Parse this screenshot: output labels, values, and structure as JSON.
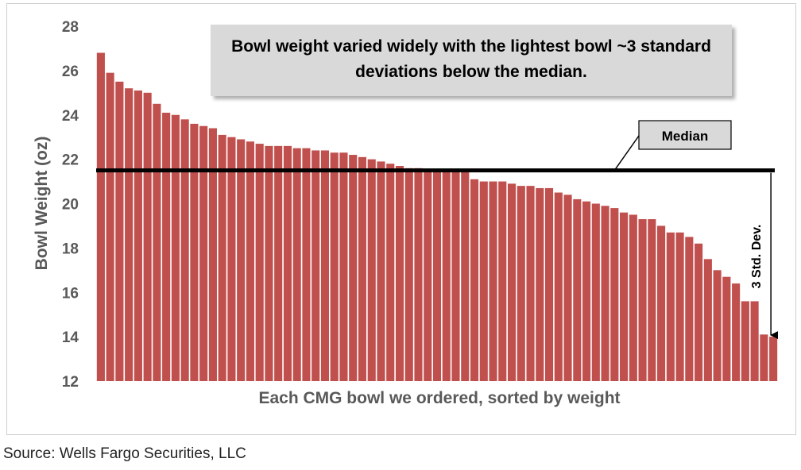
{
  "chart_data": {
    "type": "bar",
    "title": "Bowl weight varied widely with the lightest bowl ~3 standard deviations below the median.",
    "xlabel": "Each CMG bowl we ordered, sorted by weight",
    "ylabel": "Bowl Weight (oz)",
    "ylim": [
      12,
      28
    ],
    "yticks": [
      12,
      14,
      16,
      18,
      20,
      22,
      24,
      26,
      28
    ],
    "grid": false,
    "bar_color": "#c0504d",
    "values": [
      26.8,
      25.9,
      25.5,
      25.2,
      25.1,
      25.0,
      24.5,
      24.1,
      24.0,
      23.8,
      23.6,
      23.5,
      23.4,
      23.1,
      23.0,
      22.9,
      22.8,
      22.7,
      22.6,
      22.6,
      22.6,
      22.5,
      22.5,
      22.4,
      22.4,
      22.3,
      22.3,
      22.2,
      22.1,
      22.0,
      21.9,
      21.8,
      21.7,
      21.6,
      21.6,
      21.5,
      21.5,
      21.5,
      21.5,
      21.5,
      21.1,
      21.0,
      21.0,
      21.0,
      20.9,
      20.8,
      20.8,
      20.7,
      20.7,
      20.5,
      20.4,
      20.2,
      20.1,
      20.0,
      19.9,
      19.8,
      19.6,
      19.5,
      19.3,
      19.3,
      19.0,
      18.7,
      18.7,
      18.5,
      18.2,
      17.5,
      17.0,
      16.7,
      16.4,
      15.6,
      15.6,
      14.1,
      14.0
    ],
    "median": 21.5,
    "annotations": {
      "median_label": "Median",
      "std_dev_label": "3 Std. Dev."
    }
  },
  "source": "Source: Wells Fargo Securities, LLC"
}
